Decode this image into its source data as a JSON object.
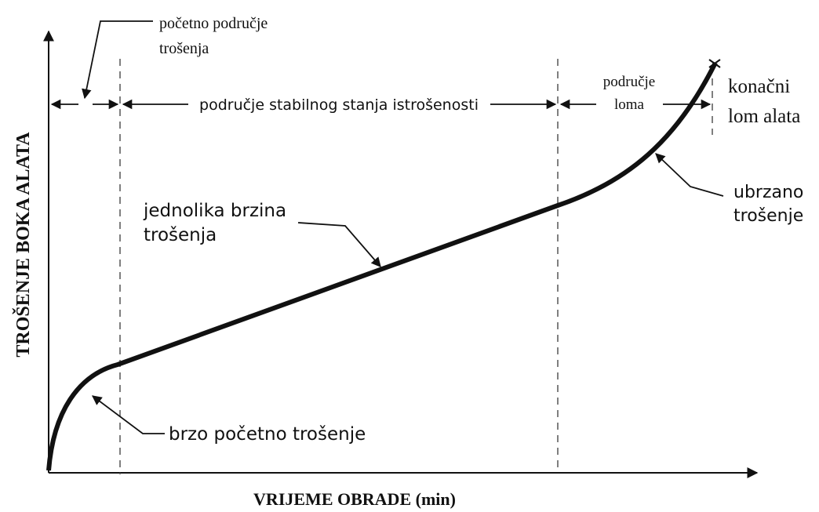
{
  "diagram": {
    "y_axis_label": "TROŠENJE BOKA ALATA",
    "x_axis_label": "VRIJEME OBRADE (min)",
    "initial_region": [
      "početno područje",
      "trošenja"
    ],
    "steady_region": "područje stabilnog stanja istrošenosti",
    "failure_region": [
      "područje",
      "loma"
    ],
    "final_failure": [
      "konačni",
      "lom alata"
    ],
    "uniform_rate": [
      "jednolika brzina",
      "trošenja"
    ],
    "accelerated": [
      "ubrzano",
      "trošenje"
    ],
    "rapid_initial": "brzo početno trošenje"
  }
}
